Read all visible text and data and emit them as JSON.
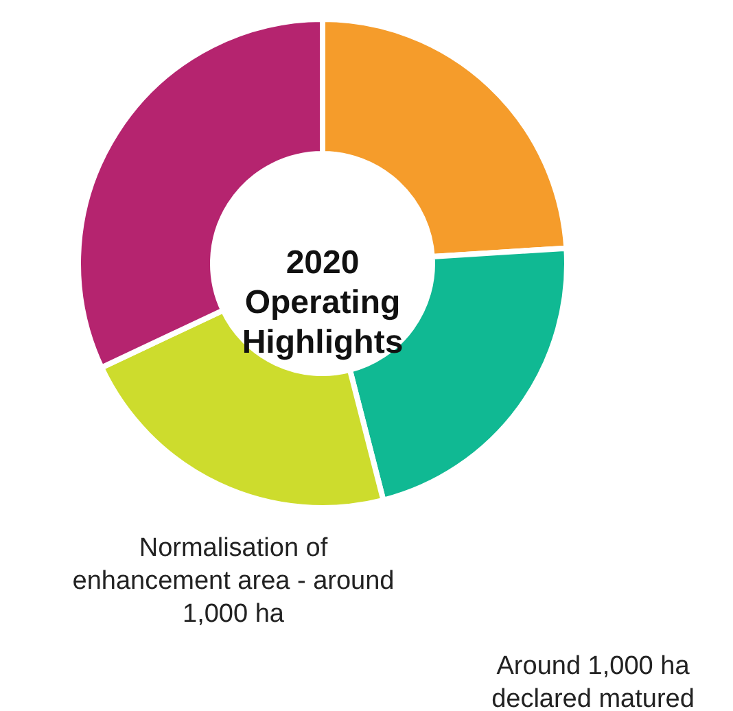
{
  "chart_data": {
    "type": "donut",
    "title": "2020 Operating Highlights",
    "categories": [
      null,
      null,
      null,
      null
    ],
    "values": [
      24,
      22,
      22,
      32
    ],
    "colors": [
      "#f59c2b",
      "#10b993",
      "#cddc2d",
      "#b5246f"
    ],
    "annotations": [
      "Normalisation of enhancement area - around 1,000 ha",
      "Around 1,000 ha declared matured"
    ]
  }
}
